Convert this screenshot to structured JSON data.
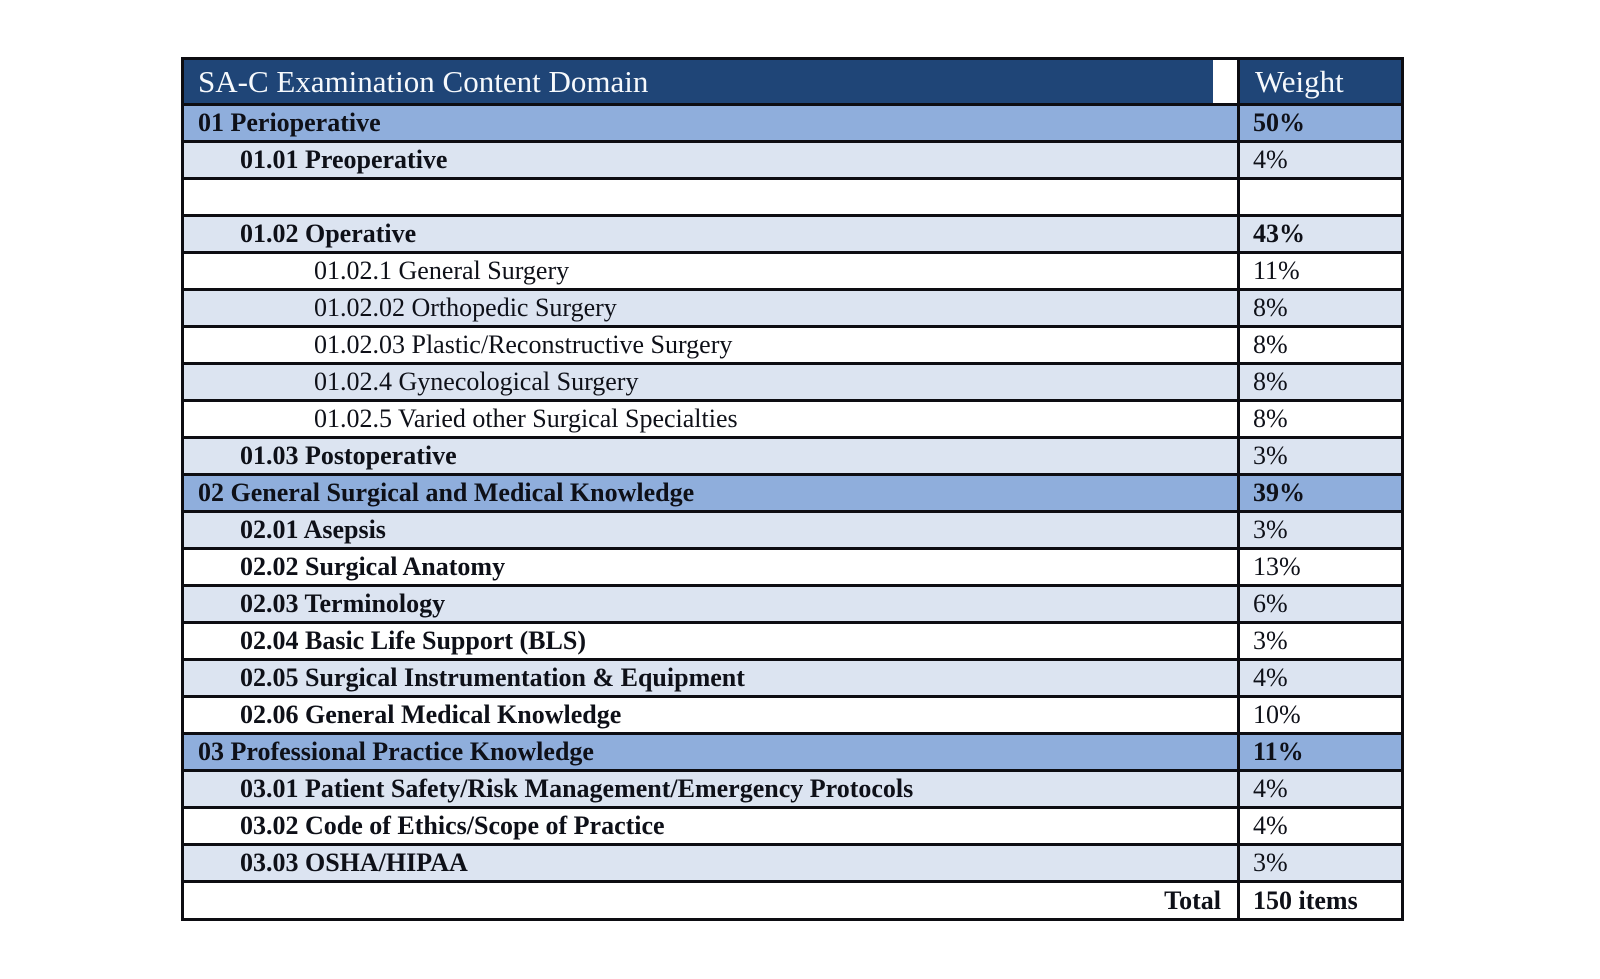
{
  "theme": {
    "header_bg": "#1F4577",
    "section_bg": "#8FAEDC",
    "light_bg": "#DCE4F1",
    "white_bg": "#FFFFFF",
    "border": "#0D0D12",
    "text": "#0E1018",
    "header_text": "#F6F9FC",
    "page_bg": "#FFFFFF"
  },
  "table": {
    "header": {
      "domain": "SA-C Examination Content Domain",
      "weight": "Weight"
    },
    "rows": [
      {
        "label": "01 Perioperative",
        "weight": "50%",
        "level": 0,
        "bg": "section",
        "label_bold": true,
        "weight_bold": true,
        "align": "left"
      },
      {
        "label": "01.01 Preoperative",
        "weight": "4%",
        "level": 1,
        "bg": "light",
        "label_bold": true,
        "weight_bold": false,
        "align": "left"
      },
      {
        "label": "",
        "weight": "",
        "level": 0,
        "bg": "white",
        "label_bold": false,
        "weight_bold": false,
        "align": "left"
      },
      {
        "label": "01.02 Operative",
        "weight": "43%",
        "level": 1,
        "bg": "light",
        "label_bold": true,
        "weight_bold": true,
        "align": "left"
      },
      {
        "label": "01.02.1 General Surgery",
        "weight": "11%",
        "level": 2,
        "bg": "white",
        "label_bold": false,
        "weight_bold": false,
        "align": "left"
      },
      {
        "label": "01.02.02 Orthopedic Surgery",
        "weight": "8%",
        "level": 2,
        "bg": "light",
        "label_bold": false,
        "weight_bold": false,
        "align": "left"
      },
      {
        "label": "01.02.03 Plastic/Reconstructive Surgery",
        "weight": "8%",
        "level": 2,
        "bg": "white",
        "label_bold": false,
        "weight_bold": false,
        "align": "left"
      },
      {
        "label": "01.02.4 Gynecological Surgery",
        "weight": "8%",
        "level": 2,
        "bg": "light",
        "label_bold": false,
        "weight_bold": false,
        "align": "left"
      },
      {
        "label": "01.02.5 Varied other Surgical Specialties",
        "weight": "8%",
        "level": 2,
        "bg": "white",
        "label_bold": false,
        "weight_bold": false,
        "align": "left"
      },
      {
        "label": "01.03 Postoperative",
        "weight": "3%",
        "level": 1,
        "bg": "light",
        "label_bold": true,
        "weight_bold": false,
        "align": "left"
      },
      {
        "label": "02 General Surgical and Medical Knowledge",
        "weight": "39%",
        "level": 0,
        "bg": "section",
        "label_bold": true,
        "weight_bold": true,
        "align": "left"
      },
      {
        "label": "02.01 Asepsis",
        "weight": "3%",
        "level": 1,
        "bg": "light",
        "label_bold": true,
        "weight_bold": false,
        "align": "left"
      },
      {
        "label": "02.02 Surgical Anatomy",
        "weight": "13%",
        "level": 1,
        "bg": "white",
        "label_bold": true,
        "weight_bold": false,
        "align": "left"
      },
      {
        "label": "02.03 Terminology",
        "weight": "6%",
        "level": 1,
        "bg": "light",
        "label_bold": true,
        "weight_bold": false,
        "align": "left"
      },
      {
        "label": "02.04 Basic Life Support (BLS)",
        "weight": "3%",
        "level": 1,
        "bg": "white",
        "label_bold": true,
        "weight_bold": false,
        "align": "left"
      },
      {
        "label": "02.05 Surgical Instrumentation & Equipment",
        "weight": "4%",
        "level": 1,
        "bg": "light",
        "label_bold": true,
        "weight_bold": false,
        "align": "left"
      },
      {
        "label": "02.06 General Medical Knowledge",
        "weight": "10%",
        "level": 1,
        "bg": "white",
        "label_bold": true,
        "weight_bold": false,
        "align": "left"
      },
      {
        "label": "03 Professional Practice Knowledge",
        "weight": "11%",
        "level": 0,
        "bg": "section",
        "label_bold": true,
        "weight_bold": true,
        "align": "left"
      },
      {
        "label": "03.01 Patient Safety/Risk Management/Emergency Protocols",
        "weight": "4%",
        "level": 1,
        "bg": "light",
        "label_bold": true,
        "weight_bold": false,
        "align": "left"
      },
      {
        "label": "03.02 Code of Ethics/Scope of Practice",
        "weight": "4%",
        "level": 1,
        "bg": "white",
        "label_bold": true,
        "weight_bold": false,
        "align": "left"
      },
      {
        "label": "03.03 OSHA/HIPAA",
        "weight": "3%",
        "level": 1,
        "bg": "light",
        "label_bold": true,
        "weight_bold": false,
        "align": "left"
      },
      {
        "label": "Total",
        "weight": "150 items",
        "level": 0,
        "bg": "white",
        "label_bold": true,
        "weight_bold": true,
        "align": "right",
        "total": true
      }
    ]
  }
}
